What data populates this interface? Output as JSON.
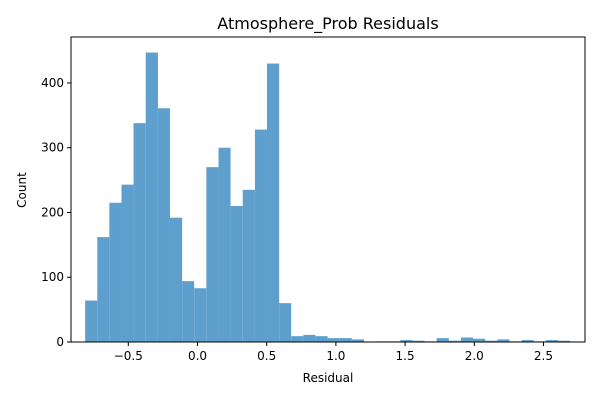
{
  "chart_data": {
    "type": "bar",
    "title": "Atmosphere_Prob Residuals",
    "xlabel": "Residual",
    "ylabel": "Count",
    "xlim": [
      -0.914,
      2.8
    ],
    "ylim": [
      0,
      471
    ],
    "x_ticks": [
      -0.5,
      0.0,
      0.5,
      1.0,
      1.5,
      2.0,
      2.5
    ],
    "x_tick_labels": [
      "−0.5",
      "0.0",
      "0.5",
      "1.0",
      "1.5",
      "2.0",
      "2.5"
    ],
    "y_ticks": [
      0,
      100,
      200,
      300,
      400
    ],
    "y_tick_labels": [
      "0",
      "100",
      "200",
      "300",
      "400"
    ],
    "bar_color": "#5f9fcd",
    "bin_start": -0.812,
    "bin_width": 0.0876,
    "bins": [
      {
        "x_start": -0.812,
        "x_end": -0.724,
        "count": 64
      },
      {
        "x_start": -0.724,
        "x_end": -0.637,
        "count": 162
      },
      {
        "x_start": -0.637,
        "x_end": -0.549,
        "count": 215
      },
      {
        "x_start": -0.549,
        "x_end": -0.462,
        "count": 243
      },
      {
        "x_start": -0.462,
        "x_end": -0.374,
        "count": 338
      },
      {
        "x_start": -0.374,
        "x_end": -0.286,
        "count": 447
      },
      {
        "x_start": -0.286,
        "x_end": -0.199,
        "count": 361
      },
      {
        "x_start": -0.199,
        "x_end": -0.111,
        "count": 192
      },
      {
        "x_start": -0.111,
        "x_end": -0.024,
        "count": 94
      },
      {
        "x_start": -0.024,
        "x_end": 0.064,
        "count": 83
      },
      {
        "x_start": 0.064,
        "x_end": 0.152,
        "count": 270
      },
      {
        "x_start": 0.152,
        "x_end": 0.239,
        "count": 300
      },
      {
        "x_start": 0.239,
        "x_end": 0.327,
        "count": 210
      },
      {
        "x_start": 0.327,
        "x_end": 0.415,
        "count": 235
      },
      {
        "x_start": 0.415,
        "x_end": 0.502,
        "count": 328
      },
      {
        "x_start": 0.502,
        "x_end": 0.59,
        "count": 430
      },
      {
        "x_start": 0.59,
        "x_end": 0.677,
        "count": 60
      },
      {
        "x_start": 0.677,
        "x_end": 0.765,
        "count": 9
      },
      {
        "x_start": 0.765,
        "x_end": 0.852,
        "count": 11
      },
      {
        "x_start": 0.852,
        "x_end": 0.94,
        "count": 9
      },
      {
        "x_start": 0.94,
        "x_end": 1.028,
        "count": 6
      },
      {
        "x_start": 1.028,
        "x_end": 1.115,
        "count": 6
      },
      {
        "x_start": 1.115,
        "x_end": 1.203,
        "count": 4
      },
      {
        "x_start": 1.203,
        "x_end": 1.29,
        "count": 0
      },
      {
        "x_start": 1.29,
        "x_end": 1.378,
        "count": 1
      },
      {
        "x_start": 1.378,
        "x_end": 1.466,
        "count": 1
      },
      {
        "x_start": 1.466,
        "x_end": 1.553,
        "count": 3
      },
      {
        "x_start": 1.553,
        "x_end": 1.641,
        "count": 2
      },
      {
        "x_start": 1.641,
        "x_end": 1.728,
        "count": 1
      },
      {
        "x_start": 1.728,
        "x_end": 1.816,
        "count": 6
      },
      {
        "x_start": 1.816,
        "x_end": 1.904,
        "count": 2
      },
      {
        "x_start": 1.904,
        "x_end": 1.991,
        "count": 7
      },
      {
        "x_start": 1.991,
        "x_end": 2.079,
        "count": 5
      },
      {
        "x_start": 2.079,
        "x_end": 2.166,
        "count": 2
      },
      {
        "x_start": 2.166,
        "x_end": 2.254,
        "count": 4
      },
      {
        "x_start": 2.254,
        "x_end": 2.342,
        "count": 1
      },
      {
        "x_start": 2.342,
        "x_end": 2.429,
        "count": 3
      },
      {
        "x_start": 2.429,
        "x_end": 2.517,
        "count": 1
      },
      {
        "x_start": 2.517,
        "x_end": 2.604,
        "count": 3
      },
      {
        "x_start": 2.604,
        "x_end": 2.692,
        "count": 2
      }
    ],
    "grid": false,
    "legend": "none"
  }
}
